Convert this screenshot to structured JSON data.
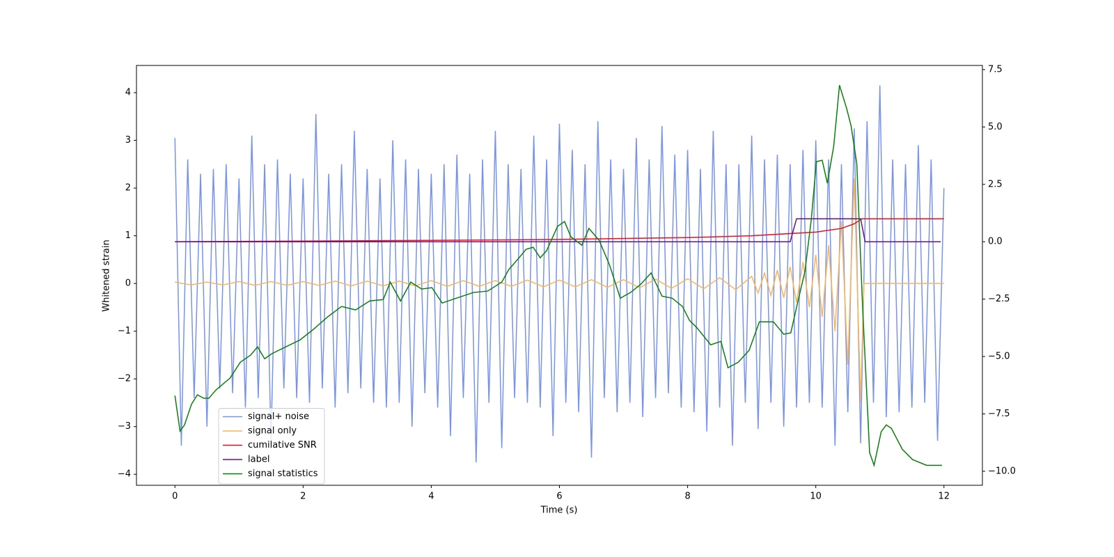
{
  "chart_data": {
    "type": "line",
    "xlabel": "Time (s)",
    "ylabel": "Whitened strain",
    "xlim": [
      -0.6,
      12.6
    ],
    "ylim": [
      -4.23,
      4.57
    ],
    "y2lim": [
      -10.61,
      7.68
    ],
    "xticks": [
      0,
      2,
      4,
      6,
      8,
      10,
      12
    ],
    "yticks": [
      {
        "value": -4,
        "label": "−4"
      },
      {
        "value": -3,
        "label": "−3"
      },
      {
        "value": -2,
        "label": "−2"
      },
      {
        "value": -1,
        "label": "−1"
      },
      0,
      1,
      2,
      3,
      4
    ],
    "y2ticks": [
      {
        "value": -10,
        "label": "−10.0"
      },
      {
        "value": -7.5,
        "label": "−7.5"
      },
      {
        "value": -5,
        "label": "−5.0"
      },
      {
        "value": -2.5,
        "label": "−2.5"
      },
      {
        "value": 0,
        "label": "0.0"
      },
      2.5,
      {
        "value": 5,
        "label": "5.0"
      },
      7.5
    ],
    "legend": "lower left",
    "series": [
      {
        "name": "signal+ noise",
        "color": "#7893e8",
        "x": [
          0,
          0.1,
          0.2,
          0.3,
          0.4,
          0.5,
          0.6,
          0.7,
          0.8,
          0.9,
          1,
          1.1,
          1.2,
          1.3,
          1.4,
          1.5,
          1.6,
          1.7,
          1.8,
          1.9,
          2,
          2.1,
          2.2,
          2.3,
          2.4,
          2.5,
          2.6,
          2.7,
          2.8,
          2.9,
          3,
          3.1,
          3.2,
          3.3,
          3.4,
          3.5,
          3.6,
          3.7,
          3.8,
          3.9,
          4,
          4.1,
          4.2,
          4.3,
          4.4,
          4.5,
          4.6,
          4.7,
          4.8,
          4.9,
          5,
          5.1,
          5.2,
          5.3,
          5.4,
          5.5,
          5.6,
          5.7,
          5.8,
          5.9,
          6,
          6.1,
          6.2,
          6.3,
          6.4,
          6.5,
          6.6,
          6.7,
          6.8,
          6.9,
          7,
          7.1,
          7.2,
          7.3,
          7.4,
          7.5,
          7.6,
          7.7,
          7.8,
          7.9,
          8,
          8.1,
          8.2,
          8.3,
          8.4,
          8.5,
          8.6,
          8.7,
          8.8,
          8.9,
          9,
          9.1,
          9.2,
          9.3,
          9.4,
          9.5,
          9.6,
          9.7,
          9.8,
          9.9,
          10,
          10.1,
          10.2,
          10.3,
          10.4,
          10.5,
          10.6,
          10.7,
          10.8,
          10.9,
          11,
          11.1,
          11.2,
          11.3,
          11.4,
          11.5,
          11.6,
          11.7,
          11.8,
          11.9,
          12
        ],
        "values": [
          3.05,
          -3.4,
          2.6,
          -2.4,
          2.3,
          -3.0,
          2.4,
          -2.2,
          2.5,
          -2.3,
          2.2,
          -2.6,
          3.1,
          -2.4,
          2.5,
          -3.3,
          2.6,
          -2.2,
          2.3,
          -2.4,
          2.2,
          -2.5,
          3.55,
          -2.2,
          2.3,
          -2.6,
          2.5,
          -2.3,
          3.2,
          -2.2,
          2.4,
          -2.5,
          2.2,
          -2.6,
          3.0,
          -2.5,
          2.6,
          -3.0,
          2.4,
          -2.3,
          2.3,
          -2.6,
          2.5,
          -3.2,
          2.7,
          -2.4,
          2.3,
          -3.75,
          2.6,
          -2.5,
          3.2,
          -3.45,
          2.5,
          -2.4,
          2.4,
          -2.5,
          3.1,
          -2.6,
          2.6,
          -3.2,
          3.35,
          -2.5,
          2.8,
          -2.7,
          2.5,
          -3.65,
          3.4,
          -2.4,
          2.6,
          -2.7,
          2.4,
          -2.5,
          3.05,
          -2.8,
          2.6,
          -2.4,
          3.3,
          -2.3,
          2.7,
          -2.6,
          2.8,
          -2.7,
          2.4,
          -3.1,
          3.2,
          -2.6,
          2.5,
          -3.4,
          2.5,
          -2.5,
          3.1,
          -3.05,
          2.6,
          -2.5,
          2.7,
          -3.0,
          2.5,
          -2.6,
          2.8,
          -2.5,
          3.0,
          -2.6,
          2.6,
          -3.4,
          2.5,
          -2.7,
          3.25,
          -3.35,
          3.4,
          -2.5,
          4.15,
          -2.8,
          2.6,
          -2.7,
          2.5,
          -2.6,
          2.9,
          -2.5,
          2.6,
          -3.3,
          2.0
        ]
      },
      {
        "name": "signal only",
        "color": "#f6b45c",
        "x": [
          0,
          0.25,
          0.5,
          0.75,
          1,
          1.25,
          1.5,
          1.75,
          2,
          2.25,
          2.5,
          2.75,
          3,
          3.25,
          3.5,
          3.75,
          4,
          4.25,
          4.5,
          4.75,
          5,
          5.25,
          5.5,
          5.75,
          6,
          6.25,
          6.5,
          6.75,
          7,
          7.25,
          7.5,
          7.75,
          8,
          8.25,
          8.5,
          8.75,
          9,
          9.1,
          9.2,
          9.3,
          9.4,
          9.5,
          9.6,
          9.7,
          9.8,
          9.9,
          10,
          10.1,
          10.2,
          10.3,
          10.4,
          10.5,
          10.6,
          10.7,
          10.75,
          12
        ],
        "values": [
          0.03,
          -0.03,
          0.03,
          -0.03,
          0.04,
          -0.04,
          0.04,
          -0.04,
          0.04,
          -0.04,
          0.05,
          -0.05,
          0.05,
          -0.05,
          0.05,
          -0.05,
          0.06,
          -0.06,
          0.06,
          -0.06,
          0.06,
          -0.06,
          0.07,
          -0.07,
          0.07,
          -0.07,
          0.08,
          -0.08,
          0.08,
          -0.09,
          0.09,
          -0.1,
          0.1,
          -0.11,
          0.12,
          -0.13,
          0.15,
          -0.2,
          0.22,
          -0.25,
          0.28,
          -0.3,
          0.35,
          -0.4,
          0.45,
          -0.5,
          0.6,
          -0.7,
          0.8,
          -1.0,
          1.3,
          -1.7,
          2.2,
          -2.5,
          0,
          0
        ]
      },
      {
        "name": "cumilative SNR",
        "color": "#e8101a",
        "axis": "y2",
        "x": [
          0,
          2,
          4,
          6,
          8,
          9,
          10,
          10.4,
          10.6,
          10.72,
          12
        ],
        "values": [
          0,
          0.03,
          0.06,
          0.1,
          0.18,
          0.26,
          0.42,
          0.58,
          0.78,
          1.0,
          1.0
        ]
      },
      {
        "name": "label",
        "color": "#6a0f8e",
        "axis": "y2",
        "x": [
          0,
          9.6,
          9.7,
          10.7,
          10.77,
          11.95
        ],
        "values": [
          0,
          0,
          1,
          1,
          0,
          0
        ]
      },
      {
        "name": "signal statistics",
        "color": "#0a7f0a",
        "axis": "y2",
        "x": [
          0,
          0.08,
          0.15,
          0.26,
          0.35,
          0.45,
          0.53,
          0.64,
          0.86,
          1.02,
          1.18,
          1.29,
          1.4,
          1.51,
          1.73,
          1.95,
          2.16,
          2.38,
          2.6,
          2.82,
          3.04,
          3.25,
          3.36,
          3.52,
          3.68,
          3.85,
          4.01,
          4.17,
          4.39,
          4.66,
          4.88,
          5.1,
          5.21,
          5.37,
          5.48,
          5.59,
          5.7,
          5.8,
          5.97,
          6.08,
          6.18,
          6.35,
          6.46,
          6.62,
          6.78,
          6.95,
          7.11,
          7.27,
          7.43,
          7.6,
          7.76,
          7.92,
          8.03,
          8.14,
          8.36,
          8.52,
          8.63,
          8.79,
          8.96,
          9.12,
          9.34,
          9.5,
          9.61,
          9.72,
          9.83,
          9.93,
          10.01,
          10.1,
          10.18,
          10.28,
          10.37,
          10.48,
          10.55,
          10.64,
          10.73,
          10.84,
          10.91,
          11.02,
          11.1,
          11.18,
          11.35,
          11.51,
          11.73,
          11.97
        ],
        "values": [
          -6.7,
          -8.25,
          -7.98,
          -7.07,
          -6.67,
          -6.82,
          -6.82,
          -6.46,
          -5.94,
          -5.25,
          -4.94,
          -4.58,
          -5.1,
          -4.88,
          -4.58,
          -4.28,
          -3.82,
          -3.28,
          -2.82,
          -2.97,
          -2.58,
          -2.52,
          -1.76,
          -2.58,
          -1.76,
          -2.06,
          -2.0,
          -2.67,
          -2.46,
          -2.21,
          -2.15,
          -1.76,
          -1.21,
          -0.7,
          -0.33,
          -0.24,
          -0.7,
          -0.39,
          0.67,
          0.88,
          0.21,
          -0.15,
          0.58,
          0.06,
          -1.0,
          -2.46,
          -2.21,
          -1.85,
          -1.36,
          -2.37,
          -2.46,
          -2.82,
          -3.43,
          -3.73,
          -4.49,
          -4.34,
          -5.49,
          -5.25,
          -4.73,
          -3.49,
          -3.49,
          -4.03,
          -3.97,
          -2.61,
          -1.3,
          0.97,
          3.49,
          3.55,
          2.55,
          4.16,
          6.82,
          5.82,
          5.06,
          3.4,
          -2.82,
          -9.19,
          -9.74,
          -8.28,
          -7.98,
          -8.13,
          -9.04,
          -9.49,
          -9.74,
          -9.74
        ]
      }
    ]
  }
}
